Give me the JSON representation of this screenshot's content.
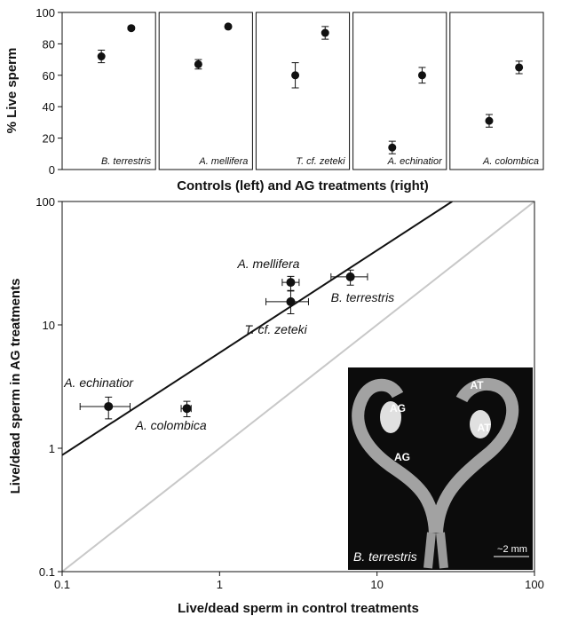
{
  "chart_data": [
    {
      "type": "dotpanel",
      "ylabel": "% Live sperm",
      "xlabel": "Controls (left) and AG treatments (right)",
      "ylim": [
        0,
        100
      ],
      "yticks": [
        0,
        20,
        40,
        60,
        80,
        100
      ],
      "panels": [
        {
          "label": "B. terrestris",
          "values": [
            72,
            90
          ],
          "errors": [
            4,
            1
          ]
        },
        {
          "label": "A. mellifera",
          "values": [
            67,
            91
          ],
          "errors": [
            3,
            1
          ]
        },
        {
          "label": "T. cf. zeteki",
          "values": [
            60,
            87
          ],
          "errors": [
            8,
            4
          ]
        },
        {
          "label": "A. echinatior",
          "values": [
            14,
            60
          ],
          "errors": [
            4,
            5
          ]
        },
        {
          "label": "A. colombica",
          "values": [
            31,
            65
          ],
          "errors": [
            4,
            4
          ]
        }
      ]
    },
    {
      "type": "scatter",
      "xlabel": "Live/dead sperm in control treatments",
      "ylabel": "Live/dead sperm in AG treatments",
      "xscale": "log",
      "yscale": "log",
      "xlim": [
        0.1,
        100
      ],
      "ylim": [
        0.1,
        100
      ],
      "xticks": [
        0.1,
        1,
        10,
        100
      ],
      "yticks": [
        0.1,
        1,
        10,
        100
      ],
      "names": [
        "A. echinatior",
        "A. colombica",
        "A. mellifera",
        "T. cf. zeteki",
        "B. terrestris"
      ],
      "x": [
        0.197,
        0.62,
        2.83,
        2.83,
        6.77
      ],
      "y": [
        2.18,
        2.1,
        22.1,
        15.4,
        24.5
      ],
      "xlow": [
        0.13,
        0.57,
        2.5,
        1.97,
        5.1
      ],
      "xhigh": [
        0.27,
        0.66,
        3.2,
        3.67,
        8.7
      ],
      "ylow": [
        1.73,
        1.8,
        19,
        12.3,
        21
      ],
      "yhigh": [
        2.6,
        2.4,
        24.7,
        18.8,
        27.8
      ],
      "fit": {
        "x": [
          0.1,
          30
        ],
        "y": [
          0.88,
          100
        ],
        "color": "#111111"
      },
      "identity": {
        "x": [
          0.1,
          100
        ],
        "y": [
          0.1,
          100
        ],
        "color": "#c8c8c8"
      },
      "inset": {
        "labels": [
          "AG",
          "AT",
          "AT",
          "AG"
        ],
        "caption": "B. terrestris",
        "scale": "~2 mm"
      }
    }
  ]
}
